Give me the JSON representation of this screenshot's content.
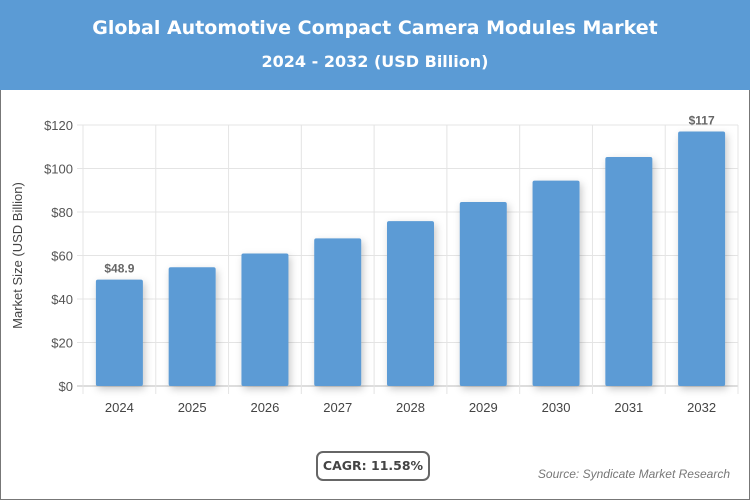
{
  "header": {
    "title": "Global Automotive Compact Camera Modules Market",
    "subtitle": "2024 - 2032 (USD Billion)"
  },
  "cagr_label": "CAGR: 11.58%",
  "source": "Source: Syndicate Market Research",
  "colors": {
    "header": "#5b9bd5",
    "bar": "#5b9bd5"
  },
  "chart_data": {
    "type": "bar",
    "title": "Global Automotive Compact Camera Modules Market",
    "subtitle": "2024 - 2032 (USD Billion)",
    "xlabel": "",
    "ylabel": "Market Size (USD Billion)",
    "categories": [
      "2024",
      "2025",
      "2026",
      "2027",
      "2028",
      "2029",
      "2030",
      "2031",
      "2032"
    ],
    "values": [
      48.9,
      54.6,
      60.9,
      67.9,
      75.8,
      84.6,
      94.4,
      105.3,
      117
    ],
    "data_labels": {
      "2024": "$48.9",
      "2032": "$117"
    },
    "ylim": [
      0,
      120
    ],
    "yticks": [
      "$0",
      "$20",
      "$40",
      "$60",
      "$80",
      "$100",
      "$120"
    ],
    "grid": true,
    "legend": "none"
  }
}
